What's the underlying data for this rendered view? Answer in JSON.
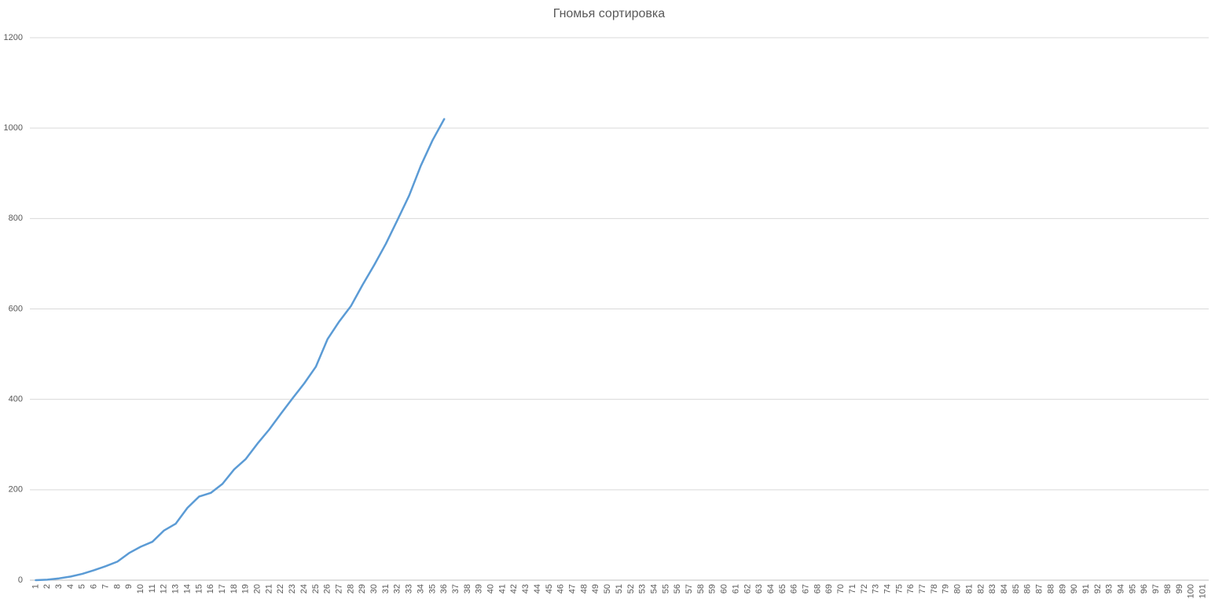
{
  "chart_data": {
    "type": "line",
    "title": "Гномья сортировка",
    "categories": [
      1,
      2,
      3,
      4,
      5,
      6,
      7,
      8,
      9,
      10,
      11,
      12,
      13,
      14,
      15,
      16,
      17,
      18,
      19,
      20,
      21,
      22,
      23,
      24,
      25,
      26,
      27,
      28,
      29,
      30,
      31,
      32,
      33,
      34,
      35,
      36,
      37,
      38,
      39,
      40,
      41,
      42,
      43,
      44,
      45,
      46,
      47,
      48,
      49,
      50,
      51,
      52,
      53,
      54,
      55,
      56,
      57,
      58,
      59,
      60,
      61,
      62,
      63,
      64,
      65,
      66,
      67,
      68,
      69,
      70,
      71,
      72,
      73,
      74,
      75,
      76,
      77,
      78,
      79,
      80,
      81,
      82,
      83,
      84,
      85,
      86,
      87,
      88,
      89,
      90,
      91,
      92,
      93,
      94,
      95,
      96,
      97,
      98,
      99,
      100,
      101
    ],
    "values": [
      0,
      1,
      4,
      8,
      14,
      22,
      31,
      41,
      60,
      74,
      85,
      110,
      125,
      160,
      185,
      193,
      213,
      245,
      268,
      302,
      333,
      368,
      402,
      435,
      472,
      533,
      572,
      606,
      653,
      697,
      744,
      797,
      851,
      917,
      973,
      1020,
      null,
      null,
      null,
      null,
      null,
      null,
      null,
      null,
      null,
      null,
      null,
      null,
      null,
      null,
      null,
      null,
      null,
      null,
      null,
      null,
      null,
      null,
      null,
      null,
      null,
      null,
      null,
      null,
      null,
      null,
      null,
      null,
      null,
      null,
      null,
      null,
      null,
      null,
      null,
      null,
      null,
      null,
      null,
      null,
      null,
      null,
      null,
      null,
      null,
      null,
      null,
      null,
      null,
      null,
      null,
      null,
      null,
      null,
      null,
      null,
      null,
      null,
      null,
      null,
      null
    ],
    "color": "#5b9bd5",
    "ylim": [
      0,
      1200
    ],
    "yticks": [
      0,
      200,
      400,
      600,
      800,
      1000,
      1200
    ],
    "grid": true
  }
}
